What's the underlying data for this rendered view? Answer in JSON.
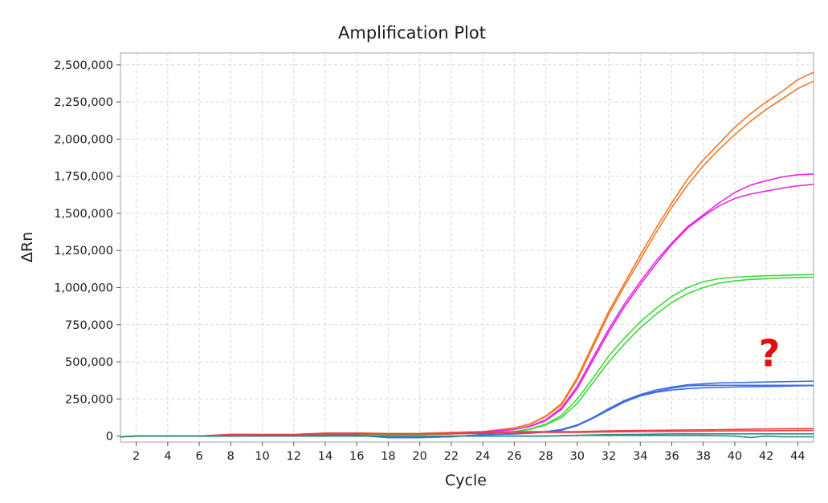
{
  "chart_data": {
    "type": "line",
    "title": "Amplification Plot",
    "xlabel": "Cycle",
    "ylabel": "ΔRn",
    "xlim": [
      1,
      45
    ],
    "ylim": [
      -40000,
      2580000
    ],
    "x_ticks": [
      2,
      4,
      6,
      8,
      10,
      12,
      14,
      16,
      18,
      20,
      22,
      24,
      26,
      28,
      30,
      32,
      34,
      36,
      38,
      40,
      42,
      44
    ],
    "y_ticks": [
      0,
      250000,
      500000,
      750000,
      1000000,
      1250000,
      1500000,
      1750000,
      2000000,
      2250000,
      2500000
    ],
    "y_tick_labels": [
      "0",
      "250,000",
      "500,000",
      "750,000",
      "1,000,000",
      "1,250,000",
      "1,500,000",
      "1,750,000",
      "2,000,000",
      "2,250,000",
      "2,500,000"
    ],
    "grid": true,
    "annotation": {
      "text": "?",
      "color": "#e01010",
      "x": 42.2,
      "y": 470000
    },
    "series": [
      {
        "name": "orange-1",
        "color": "#f07828",
        "x": [
          1,
          2,
          4,
          6,
          8,
          10,
          12,
          14,
          16,
          18,
          20,
          22,
          24,
          26,
          27,
          28,
          29,
          30,
          31,
          32,
          33,
          34,
          35,
          36,
          37,
          38,
          39,
          40,
          41,
          42,
          43,
          44,
          45
        ],
        "y": [
          -5000,
          0,
          0,
          0,
          12000,
          10000,
          10000,
          20000,
          20000,
          18000,
          18000,
          25000,
          30000,
          55000,
          80000,
          130000,
          210000,
          380000,
          600000,
          820000,
          1010000,
          1190000,
          1370000,
          1540000,
          1690000,
          1820000,
          1930000,
          2030000,
          2120000,
          2200000,
          2270000,
          2340000,
          2390000
        ]
      },
      {
        "name": "orange-2",
        "color": "#f07828",
        "x": [
          1,
          2,
          4,
          6,
          8,
          10,
          12,
          14,
          16,
          18,
          20,
          22,
          24,
          26,
          27,
          28,
          29,
          30,
          31,
          32,
          33,
          34,
          35,
          36,
          37,
          38,
          39,
          40,
          41,
          42,
          43,
          44,
          45
        ],
        "y": [
          -5000,
          0,
          0,
          0,
          12000,
          10000,
          10000,
          20000,
          20000,
          18000,
          18000,
          25000,
          30000,
          55000,
          82000,
          135000,
          220000,
          395000,
          620000,
          840000,
          1030000,
          1220000,
          1400000,
          1570000,
          1730000,
          1860000,
          1970000,
          2080000,
          2170000,
          2250000,
          2320000,
          2400000,
          2450000
        ]
      },
      {
        "name": "magenta-1",
        "color": "#e628e0",
        "x": [
          1,
          2,
          4,
          6,
          8,
          10,
          12,
          14,
          16,
          18,
          20,
          22,
          24,
          26,
          27,
          28,
          29,
          30,
          31,
          32,
          33,
          34,
          35,
          36,
          37,
          38,
          39,
          40,
          41,
          42,
          43,
          44,
          45
        ],
        "y": [
          -5000,
          0,
          0,
          0,
          8000,
          8000,
          8000,
          15000,
          15000,
          12000,
          15000,
          20000,
          28000,
          45000,
          65000,
          105000,
          180000,
          320000,
          510000,
          700000,
          870000,
          1020000,
          1160000,
          1290000,
          1400000,
          1480000,
          1550000,
          1600000,
          1630000,
          1650000,
          1670000,
          1685000,
          1695000
        ]
      },
      {
        "name": "magenta-2",
        "color": "#e628e0",
        "x": [
          1,
          2,
          4,
          6,
          8,
          10,
          12,
          14,
          16,
          18,
          20,
          22,
          24,
          26,
          27,
          28,
          29,
          30,
          31,
          32,
          33,
          34,
          35,
          36,
          37,
          38,
          39,
          40,
          41,
          42,
          43,
          44,
          45
        ],
        "y": [
          -5000,
          0,
          0,
          0,
          8000,
          8000,
          8000,
          15000,
          15000,
          12000,
          15000,
          20000,
          28000,
          45000,
          68000,
          110000,
          190000,
          335000,
          530000,
          720000,
          890000,
          1040000,
          1180000,
          1300000,
          1410000,
          1490000,
          1570000,
          1640000,
          1690000,
          1720000,
          1745000,
          1760000,
          1765000
        ]
      },
      {
        "name": "green-1",
        "color": "#3cd83c",
        "x": [
          1,
          2,
          4,
          6,
          8,
          10,
          12,
          14,
          16,
          18,
          20,
          22,
          24,
          26,
          27,
          28,
          29,
          30,
          31,
          32,
          33,
          34,
          35,
          36,
          37,
          38,
          39,
          40,
          41,
          42,
          43,
          44,
          45
        ],
        "y": [
          -5000,
          0,
          0,
          0,
          5000,
          5000,
          5000,
          10000,
          10000,
          10000,
          12000,
          15000,
          20000,
          30000,
          45000,
          75000,
          125000,
          220000,
          360000,
          500000,
          620000,
          730000,
          820000,
          900000,
          960000,
          1000000,
          1030000,
          1045000,
          1055000,
          1060000,
          1065000,
          1068000,
          1070000
        ]
      },
      {
        "name": "green-2",
        "color": "#3cd83c",
        "x": [
          1,
          2,
          4,
          6,
          8,
          10,
          12,
          14,
          16,
          18,
          20,
          22,
          24,
          26,
          27,
          28,
          29,
          30,
          31,
          32,
          33,
          34,
          35,
          36,
          37,
          38,
          39,
          40,
          41,
          42,
          43,
          44,
          45
        ],
        "y": [
          -5000,
          0,
          0,
          0,
          5000,
          5000,
          5000,
          10000,
          10000,
          10000,
          12000,
          15000,
          20000,
          30000,
          48000,
          80000,
          140000,
          250000,
          390000,
          540000,
          660000,
          770000,
          860000,
          940000,
          1000000,
          1040000,
          1060000,
          1070000,
          1075000,
          1080000,
          1082000,
          1085000,
          1088000
        ]
      },
      {
        "name": "blue-1",
        "color": "#3c6ee6",
        "x": [
          1,
          2,
          4,
          6,
          8,
          10,
          12,
          14,
          16,
          18,
          20,
          22,
          24,
          26,
          27,
          28,
          29,
          30,
          31,
          32,
          33,
          34,
          35,
          36,
          37,
          38,
          39,
          40,
          41,
          42,
          43,
          44,
          45
        ],
        "y": [
          -5000,
          0,
          0,
          0,
          5000,
          5000,
          5000,
          5000,
          5000,
          -10000,
          -10000,
          -5000,
          10000,
          15000,
          20000,
          28000,
          40000,
          70000,
          120000,
          175000,
          230000,
          270000,
          295000,
          310000,
          320000,
          325000,
          328000,
          330000,
          332000,
          334000,
          336000,
          338000,
          340000
        ]
      },
      {
        "name": "blue-2",
        "color": "#3c6ee6",
        "x": [
          1,
          2,
          4,
          6,
          8,
          10,
          12,
          14,
          16,
          18,
          20,
          22,
          24,
          26,
          27,
          28,
          29,
          30,
          31,
          32,
          33,
          34,
          35,
          36,
          37,
          38,
          39,
          40,
          41,
          42,
          43,
          44,
          45
        ],
        "y": [
          -5000,
          0,
          0,
          0,
          5000,
          5000,
          5000,
          5000,
          5000,
          -10000,
          -10000,
          -5000,
          10000,
          15000,
          22000,
          30000,
          45000,
          75000,
          125000,
          185000,
          240000,
          280000,
          310000,
          330000,
          345000,
          352000,
          358000,
          360000,
          362000,
          364000,
          366000,
          368000,
          370000
        ]
      },
      {
        "name": "blue-3",
        "color": "#3c6ee6",
        "x": [
          1,
          2,
          4,
          6,
          8,
          10,
          12,
          14,
          16,
          18,
          20,
          22,
          24,
          26,
          27,
          28,
          29,
          30,
          31,
          32,
          33,
          34,
          35,
          36,
          37,
          38,
          39,
          40,
          41,
          42,
          43,
          44,
          45
        ],
        "y": [
          -5000,
          0,
          0,
          0,
          5000,
          5000,
          5000,
          5000,
          5000,
          -10000,
          -10000,
          -5000,
          10000,
          15000,
          20000,
          28000,
          42000,
          72000,
          122000,
          180000,
          235000,
          275000,
          300000,
          322000,
          338000,
          342000,
          342000,
          342000,
          342000,
          342000,
          342000,
          342000,
          342000
        ]
      },
      {
        "name": "red-1",
        "color": "#f03c3c",
        "x": [
          1,
          2,
          4,
          6,
          8,
          10,
          12,
          14,
          16,
          18,
          20,
          22,
          24,
          26,
          28,
          30,
          32,
          34,
          36,
          38,
          40,
          42,
          44,
          45
        ],
        "y": [
          -5000,
          0,
          0,
          0,
          10000,
          10000,
          10000,
          20000,
          20000,
          15000,
          15000,
          20000,
          25000,
          30000,
          30000,
          30000,
          35000,
          38000,
          40000,
          42000,
          45000,
          48000,
          50000,
          50000
        ]
      },
      {
        "name": "red-2",
        "color": "#f03c3c",
        "x": [
          1,
          2,
          4,
          6,
          8,
          10,
          12,
          14,
          16,
          18,
          20,
          22,
          24,
          26,
          28,
          30,
          32,
          34,
          36,
          38,
          40,
          42,
          44,
          45
        ],
        "y": [
          -5000,
          0,
          0,
          0,
          10000,
          10000,
          10000,
          15000,
          15000,
          15000,
          15000,
          15000,
          20000,
          25000,
          25000,
          25000,
          28000,
          30000,
          32000,
          33000,
          35000,
          36000,
          38000,
          38000
        ]
      },
      {
        "name": "teal-1",
        "color": "#288c8c",
        "x": [
          1,
          2,
          4,
          6,
          8,
          10,
          12,
          14,
          16,
          18,
          20,
          22,
          24,
          26,
          28,
          30,
          32,
          34,
          36,
          38,
          40,
          41,
          42,
          43,
          44,
          45
        ],
        "y": [
          -5000,
          0,
          0,
          0,
          0,
          0,
          0,
          0,
          0,
          0,
          0,
          0,
          0,
          0,
          0,
          5000,
          5000,
          5000,
          5000,
          5000,
          0,
          -10000,
          0,
          -5000,
          -5000,
          -5000
        ]
      },
      {
        "name": "teal-2",
        "color": "#288c8c",
        "x": [
          1,
          2,
          4,
          6,
          8,
          10,
          12,
          14,
          16,
          18,
          20,
          22,
          24,
          26,
          28,
          30,
          32,
          34,
          36,
          38,
          40,
          42,
          44,
          45
        ],
        "y": [
          -5000,
          0,
          0,
          0,
          0,
          0,
          0,
          0,
          0,
          0,
          0,
          0,
          0,
          0,
          0,
          5000,
          10000,
          12000,
          15000,
          15000,
          15000,
          15000,
          15000,
          15000
        ]
      }
    ]
  }
}
